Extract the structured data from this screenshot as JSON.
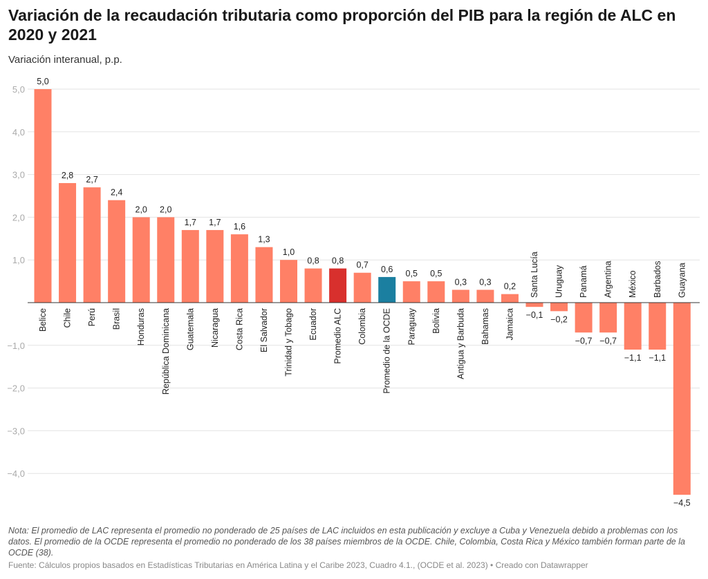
{
  "title": "Variación de la recaudación tributaria como proporción del PIB para la región de ALC en 2020 y 2021",
  "subtitle": "Variación interanual, p.p.",
  "note": "Nota: El promedio de LAC representa el promedio no ponderado de 25 países de LAC incluidos en esta publicación y excluye a Cuba y Venezuela debido a problemas con los datos. El promedio de la OCDE representa el promedio no ponderado de los 38 países miembros de la OCDE. Chile, Colombia, Costa Rica y México también forman parte de la OCDE (38).",
  "source": "Fuente: Cálculos propios basados en Estadísticas Tributarias en América Latina y el Caribe 2023, Cuadro 4.1., (OCDE et al. 2023) • Creado con Datawrapper",
  "chart_data": {
    "type": "bar",
    "title": "Variación de la recaudación tributaria como proporción del PIB para la región de ALC en 2020 y 2021",
    "ylabel": "Variación interanual, p.p.",
    "ylim": [
      -4.5,
      5.0
    ],
    "yticks": [
      5.0,
      4.0,
      3.0,
      2.0,
      1.0,
      -1.0,
      -2.0,
      -3.0,
      -4.0
    ],
    "ytick_labels": [
      "5,0",
      "4,0",
      "3,0",
      "2,0",
      "1,0",
      "−1,0",
      "−2,0",
      "−3,0",
      "−4,0"
    ],
    "grid": true,
    "colors": {
      "default": "#ff8066",
      "Promedio ALC": "#d8302d",
      "Promedio de la OCDE": "#1b7fa0"
    },
    "categories": [
      "Belice",
      "Chile",
      "Perú",
      "Brasil",
      "Honduras",
      "República Dominicana",
      "Guatemala",
      "Nicaragua",
      "Costa Rica",
      "El Salvador",
      "Trinidad y Tobago",
      "Ecuador",
      "Promedio ALC",
      "Colombia",
      "Promedio de la OCDE",
      "Paraguay",
      "Bolivia",
      "Antigua y Barbuda",
      "Bahamas",
      "Jamaica",
      "Santa Lucía",
      "Uruguay",
      "Panamá",
      "Argentina",
      "México",
      "Barbados",
      "Guayana"
    ],
    "values": [
      5.0,
      2.8,
      2.7,
      2.4,
      2.0,
      2.0,
      1.7,
      1.7,
      1.6,
      1.3,
      1.0,
      0.8,
      0.8,
      0.7,
      0.6,
      0.5,
      0.5,
      0.3,
      0.3,
      0.2,
      -0.1,
      -0.2,
      -0.7,
      -0.7,
      -1.1,
      -1.1,
      -4.5
    ],
    "value_labels": [
      "5,0",
      "2,8",
      "2,7",
      "2,4",
      "2,0",
      "2,0",
      "1,7",
      "1,7",
      "1,6",
      "1,3",
      "1,0",
      "0,8",
      "0,8",
      "0,7",
      "0,6",
      "0,5",
      "0,5",
      "0,3",
      "0,3",
      "0,2",
      "−0,1",
      "−0,2",
      "−0,7",
      "−0,7",
      "−1,1",
      "−1,1",
      "−4,5"
    ]
  }
}
